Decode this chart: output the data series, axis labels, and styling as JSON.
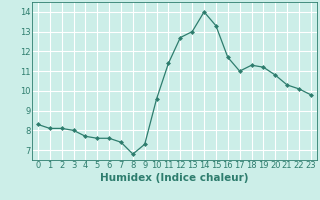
{
  "x": [
    0,
    1,
    2,
    3,
    4,
    5,
    6,
    7,
    8,
    9,
    10,
    11,
    12,
    13,
    14,
    15,
    16,
    17,
    18,
    19,
    20,
    21,
    22,
    23
  ],
  "y": [
    8.3,
    8.1,
    8.1,
    8.0,
    7.7,
    7.6,
    7.6,
    7.4,
    6.8,
    7.3,
    9.6,
    11.4,
    12.7,
    13.0,
    14.0,
    13.3,
    11.7,
    11.0,
    11.3,
    11.2,
    10.8,
    10.3,
    10.1,
    9.8
  ],
  "line_color": "#2e7d6e",
  "marker": "D",
  "marker_size": 2.0,
  "bg_color": "#cceee8",
  "grid_color": "#ffffff",
  "xlabel": "Humidex (Indice chaleur)",
  "ylim": [
    6.5,
    14.5
  ],
  "yticks": [
    7,
    8,
    9,
    10,
    11,
    12,
    13,
    14
  ],
  "xticks": [
    0,
    1,
    2,
    3,
    4,
    5,
    6,
    7,
    8,
    9,
    10,
    11,
    12,
    13,
    14,
    15,
    16,
    17,
    18,
    19,
    20,
    21,
    22,
    23
  ],
  "tick_color": "#2e7d6e",
  "xlabel_fontsize": 7.5,
  "tick_fontsize": 6.0
}
